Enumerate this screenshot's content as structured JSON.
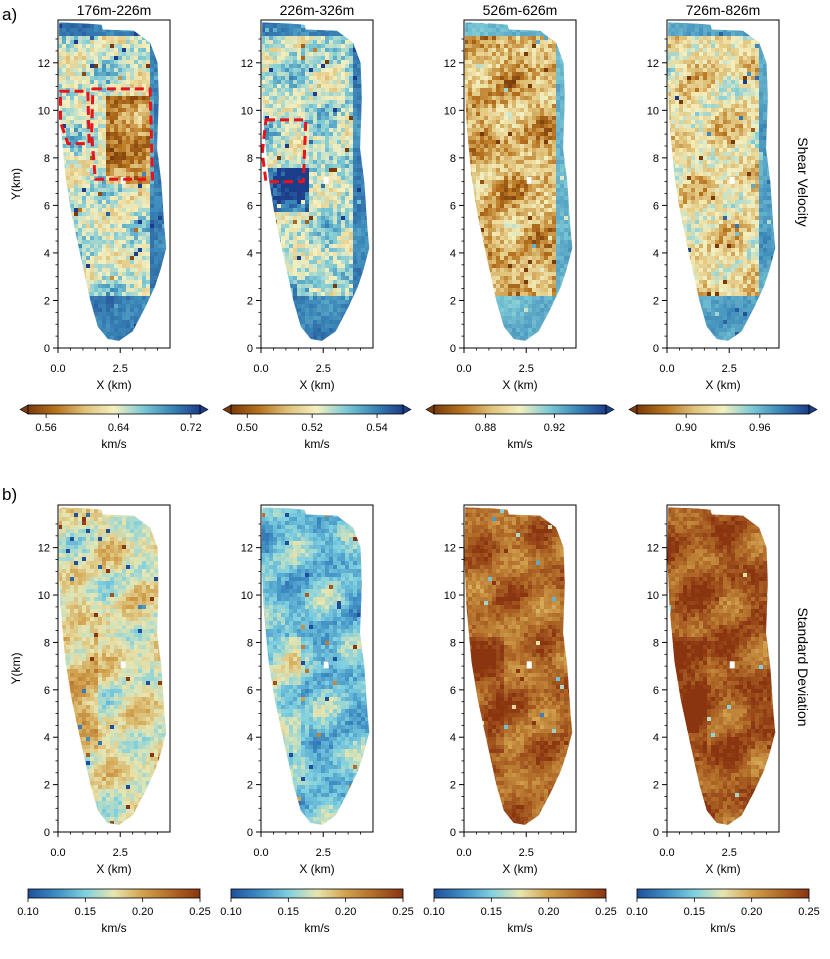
{
  "panel_letters": [
    "a)",
    "b)"
  ],
  "row_labels": [
    "Shear Velocity",
    "Standard Deviation"
  ],
  "chart_data": {
    "type": "heatmap",
    "xlabel": "X (km)",
    "ylabel": "Y(km)",
    "xlim": [
      0,
      4.5
    ],
    "ylim": [
      0,
      13.8
    ],
    "x_ticks": [
      0.0,
      2.5
    ],
    "x_tick_labels": [
      "0.0",
      "2.5"
    ],
    "y_ticks": [
      0,
      2,
      4,
      6,
      8,
      10,
      12
    ],
    "y_tick_labels": [
      "0",
      "2",
      "4",
      "6",
      "8",
      "10",
      "12"
    ],
    "depth_titles": [
      "176m-226m",
      "226m-326m",
      "526m-626m",
      "726m-826m"
    ],
    "colorbar_unit": "km/s",
    "rows": [
      {
        "row": "a",
        "label": "Shear Velocity",
        "colormap": [
          "#7a3b0a",
          "#b8741f",
          "#e0c27a",
          "#f4f0c0",
          "#7dcad6",
          "#3a86b8",
          "#1c3d8a"
        ],
        "panels": [
          {
            "title": "176m-226m",
            "cbar_ticks": [
              0.56,
              0.64,
              0.72
            ],
            "cbar_tick_labels": [
              "0.56",
              "0.64",
              "0.72"
            ],
            "cbar_range": [
              0.54,
              0.73
            ],
            "extend": "both",
            "base_level": 0.55,
            "outer_level": 0.98,
            "annotation": "two red dashed outlined regions"
          },
          {
            "title": "226m-326m",
            "cbar_ticks": [
              0.5,
              0.52,
              0.54
            ],
            "cbar_tick_labels": [
              "0.50",
              "0.52",
              "0.54"
            ],
            "cbar_range": [
              0.495,
              0.548
            ],
            "extend": "both",
            "base_level": 0.58,
            "outer_level": 0.95,
            "annotation": "one red dashed outlined region"
          },
          {
            "title": "526m-626m",
            "cbar_ticks": [
              0.88,
              0.92
            ],
            "cbar_tick_labels": [
              "0.88",
              "0.92"
            ],
            "cbar_range": [
              0.85,
              0.95
            ],
            "extend": "both",
            "base_level": 0.3,
            "outer_level": 0.9
          },
          {
            "title": "726m-826m",
            "cbar_ticks": [
              0.9,
              0.96
            ],
            "cbar_tick_labels": [
              "0.90",
              "0.96"
            ],
            "cbar_range": [
              0.86,
              1.0
            ],
            "extend": "both",
            "base_level": 0.42,
            "outer_level": 0.92
          }
        ]
      },
      {
        "row": "b",
        "label": "Standard Deviation",
        "colormap": [
          "#1f4f9a",
          "#3e8ec4",
          "#7fd0e0",
          "#e8e6b0",
          "#d2a24e",
          "#b06a28",
          "#8a3410"
        ],
        "panels": [
          {
            "title": "176m-226m",
            "cbar_ticks": [
              0.1,
              0.15,
              0.2,
              0.25
            ],
            "cbar_tick_labels": [
              "0.10",
              "0.15",
              "0.20",
              "0.25"
            ],
            "cbar_range": [
              0.1,
              0.25
            ],
            "extend": "neither",
            "base_level": 0.5
          },
          {
            "title": "226m-326m",
            "cbar_ticks": [
              0.1,
              0.15,
              0.2,
              0.25
            ],
            "cbar_tick_labels": [
              "0.10",
              "0.15",
              "0.20",
              "0.25"
            ],
            "cbar_range": [
              0.1,
              0.25
            ],
            "extend": "neither",
            "base_level": 0.3
          },
          {
            "title": "526m-626m",
            "cbar_ticks": [
              0.1,
              0.15,
              0.2,
              0.25
            ],
            "cbar_tick_labels": [
              "0.10",
              "0.15",
              "0.20",
              "0.25"
            ],
            "cbar_range": [
              0.1,
              0.25
            ],
            "extend": "neither",
            "base_level": 0.83
          },
          {
            "title": "726m-826m",
            "cbar_ticks": [
              0.1,
              0.15,
              0.2,
              0.25
            ],
            "cbar_tick_labels": [
              "0.10",
              "0.15",
              "0.20",
              "0.25"
            ],
            "cbar_range": [
              0.1,
              0.25
            ],
            "extend": "neither",
            "base_level": 0.88
          }
        ]
      }
    ]
  }
}
